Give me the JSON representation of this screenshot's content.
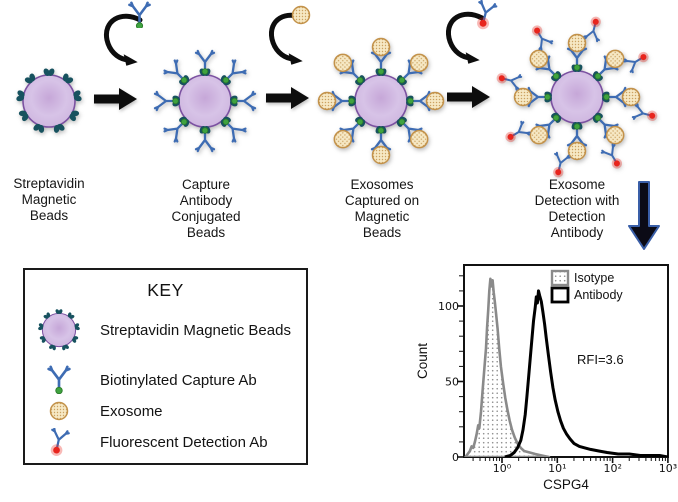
{
  "colors": {
    "bead-fill": "#d5c0e5",
    "bead-border": "#7b51a1",
    "receptor": "#17525f",
    "antibody": "#3e6cb3",
    "biotin": "#3fa33f",
    "exosome": "#f6e8c4",
    "exosome-border": "#c3924a",
    "fluor": "#e8251d",
    "arrow": "#0d0d0d",
    "down-arrow-border": "#3a5fa8"
  },
  "workflow": {
    "stages": [
      {
        "name": "streptavidin-magnetic-beads",
        "icon": "magnetic-bead-icon",
        "label": "Streptavidin\nMagnetic\nBeads"
      },
      {
        "name": "capture-antibody-conjugated-beads",
        "icon": "capture-bead-icon",
        "label": "Capture\nAntibody\nConjugated\nBeads"
      },
      {
        "name": "exosomes-captured-on-beads",
        "icon": "exosome-bead-icon",
        "label": "Exosomes\nCaptured on\nMagnetic\nBeads"
      },
      {
        "name": "exosome-detection",
        "icon": "detection-bead-icon",
        "label": "Exosome\nDetection with\nDetection\nAntibody"
      }
    ],
    "added_reagents": [
      {
        "step": 1,
        "icon": "capture-antibody-icon"
      },
      {
        "step": 2,
        "icon": "exosome-icon"
      },
      {
        "step": 3,
        "icon": "detection-antibody-icon"
      }
    ]
  },
  "key": {
    "title": "KEY",
    "items": [
      {
        "icon": "magnetic-bead-icon",
        "label": "Streptavidin Magnetic Beads"
      },
      {
        "icon": "capture-antibody-icon",
        "label": "Biotinylated Capture Ab"
      },
      {
        "icon": "exosome-icon",
        "label": "Exosome"
      },
      {
        "icon": "detection-antibody-icon",
        "label": "Fluorescent Detection Ab"
      }
    ]
  },
  "chart_data": {
    "type": "area",
    "kind": "flow-cytometry-histogram",
    "title": "",
    "xlabel": "CSPG4",
    "ylabel": "Count",
    "x_scale": "log10",
    "x_range_log10": [
      -0.69,
      3.0
    ],
    "ylim": [
      0,
      127
    ],
    "annotation": "RFI=3.6",
    "legend_position": "top-right-inside",
    "x_ticks": [
      {
        "log10": 0,
        "label": "10⁰"
      },
      {
        "log10": 1,
        "label": "10¹"
      },
      {
        "log10": 2,
        "label": "10²"
      },
      {
        "log10": 3,
        "label": "10³"
      }
    ],
    "y_ticks": [
      {
        "value": 0,
        "label": "0"
      },
      {
        "value": 50,
        "label": "50"
      },
      {
        "value": 100,
        "label": "100"
      }
    ],
    "legend": [
      {
        "name": "Isotype",
        "style": "gray outline, stippled fill"
      },
      {
        "name": "Antibody",
        "style": "black outline, open"
      }
    ],
    "series": [
      {
        "name": "Isotype",
        "peak_x": 0.62,
        "peak_count": 118,
        "points": [
          [
            -0.66,
            0
          ],
          [
            -0.62,
            2
          ],
          [
            -0.58,
            4
          ],
          [
            -0.55,
            7
          ],
          [
            -0.52,
            6
          ],
          [
            -0.49,
            10
          ],
          [
            -0.46,
            15
          ],
          [
            -0.43,
            21
          ],
          [
            -0.41,
            19
          ],
          [
            -0.38,
            30
          ],
          [
            -0.35,
            44
          ],
          [
            -0.32,
            58
          ],
          [
            -0.29,
            72
          ],
          [
            -0.27,
            86
          ],
          [
            -0.25,
            97
          ],
          [
            -0.23,
            110
          ],
          [
            -0.21,
            118
          ],
          [
            -0.19,
            113
          ],
          [
            -0.17,
            117
          ],
          [
            -0.15,
            109
          ],
          [
            -0.13,
            103
          ],
          [
            -0.11,
            96
          ],
          [
            -0.08,
            85
          ],
          [
            -0.05,
            72
          ],
          [
            -0.02,
            60
          ],
          [
            0.02,
            49
          ],
          [
            0.06,
            39
          ],
          [
            0.1,
            31
          ],
          [
            0.14,
            24
          ],
          [
            0.18,
            18
          ],
          [
            0.23,
            13
          ],
          [
            0.28,
            9
          ],
          [
            0.34,
            6
          ],
          [
            0.4,
            4
          ],
          [
            0.5,
            3
          ],
          [
            0.6,
            2
          ],
          [
            0.72,
            1
          ],
          [
            0.85,
            0
          ]
        ]
      },
      {
        "name": "Antibody",
        "peak_x": 4.5,
        "peak_count": 110,
        "points": [
          [
            0.05,
            0
          ],
          [
            0.15,
            1
          ],
          [
            0.22,
            3
          ],
          [
            0.28,
            6
          ],
          [
            0.34,
            11
          ],
          [
            0.38,
            18
          ],
          [
            0.42,
            28
          ],
          [
            0.45,
            40
          ],
          [
            0.48,
            52
          ],
          [
            0.51,
            65
          ],
          [
            0.54,
            78
          ],
          [
            0.57,
            90
          ],
          [
            0.6,
            99
          ],
          [
            0.62,
            106
          ],
          [
            0.64,
            102
          ],
          [
            0.66,
            110
          ],
          [
            0.68,
            107
          ],
          [
            0.71,
            103
          ],
          [
            0.74,
            96
          ],
          [
            0.77,
            88
          ],
          [
            0.8,
            79
          ],
          [
            0.84,
            67
          ],
          [
            0.88,
            56
          ],
          [
            0.92,
            46
          ],
          [
            0.96,
            38
          ],
          [
            1.01,
            30
          ],
          [
            1.06,
            24
          ],
          [
            1.11,
            19
          ],
          [
            1.17,
            15
          ],
          [
            1.23,
            12
          ],
          [
            1.3,
            9
          ],
          [
            1.4,
            7
          ],
          [
            1.5,
            6
          ],
          [
            1.6,
            5
          ],
          [
            1.75,
            4
          ],
          [
            1.9,
            3
          ],
          [
            2.1,
            2
          ],
          [
            2.3,
            2
          ],
          [
            2.5,
            1
          ],
          [
            2.7,
            1
          ],
          [
            2.85,
            1
          ],
          [
            3.0,
            0
          ]
        ]
      }
    ]
  }
}
